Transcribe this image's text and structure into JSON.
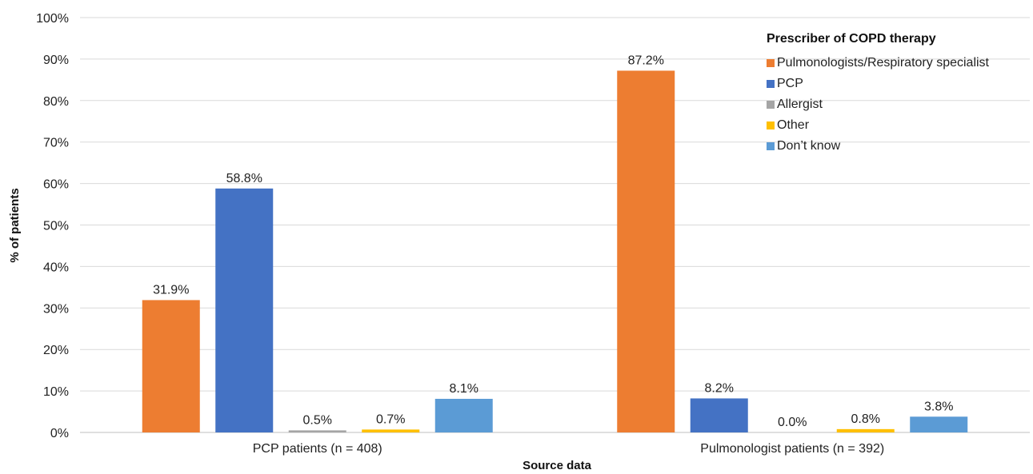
{
  "chart_data": {
    "type": "bar",
    "xlabel": "Source data",
    "ylabel": "% of patients",
    "ylim": [
      0,
      100
    ],
    "yticks": [
      "0%",
      "10%",
      "20%",
      "30%",
      "40%",
      "50%",
      "60%",
      "70%",
      "80%",
      "90%",
      "100%"
    ],
    "grid": true,
    "legend_placement": "top-right",
    "legend_title": "Prescriber of COPD therapy",
    "categories": [
      "PCP patients (n = 408)",
      "Pulmonologist patients (n = 392)"
    ],
    "series": [
      {
        "name": "Pulmonologists/Respiratory specialist",
        "color": "#ED7D31",
        "values": [
          31.9,
          87.2
        ],
        "labels": [
          "31.9%",
          "87.2%"
        ]
      },
      {
        "name": "PCP",
        "color": "#4472C4",
        "values": [
          58.8,
          8.2
        ],
        "labels": [
          "58.8%",
          "8.2%"
        ]
      },
      {
        "name": "Allergist",
        "color": "#A5A5A5",
        "values": [
          0.5,
          0.0
        ],
        "labels": [
          "0.5%",
          "0.0%"
        ]
      },
      {
        "name": "Other",
        "color": "#FFC000",
        "values": [
          0.7,
          0.8
        ],
        "labels": [
          "0.7%",
          "0.8%"
        ]
      },
      {
        "name": "Don’t know",
        "color": "#5B9BD5",
        "values": [
          8.1,
          3.8
        ],
        "labels": [
          "8.1%",
          "3.8%"
        ]
      }
    ]
  }
}
